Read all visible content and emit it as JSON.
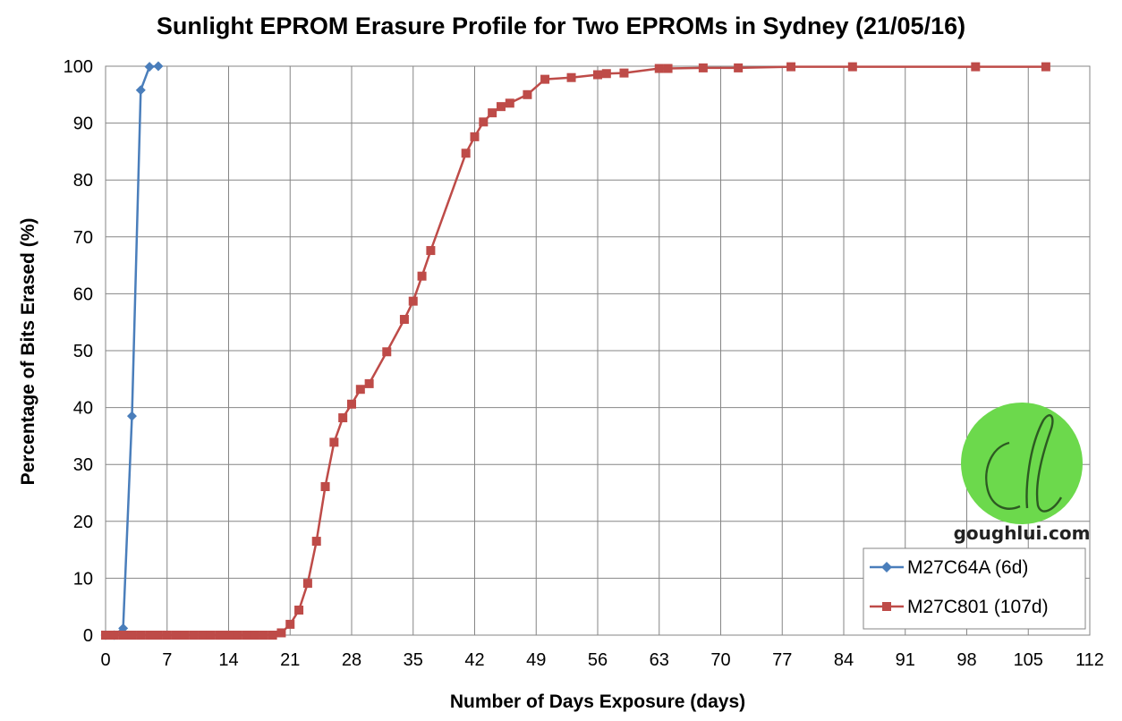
{
  "chart_data": {
    "type": "line",
    "title": "Sunlight EPROM Erasure Profile for Two EPROMs in Sydney (21/05/16)",
    "xlabel": "Number of Days Exposure (days)",
    "ylabel": "Percentage of Bits Erased (%)",
    "xlim": [
      0,
      112
    ],
    "ylim": [
      0,
      100
    ],
    "xticks": [
      0,
      7,
      14,
      21,
      28,
      35,
      42,
      49,
      56,
      63,
      70,
      77,
      84,
      91,
      98,
      105,
      112
    ],
    "yticks": [
      0,
      10,
      20,
      30,
      40,
      50,
      60,
      70,
      80,
      90,
      100
    ],
    "grid": true,
    "legend_position": "bottom-right",
    "series": [
      {
        "name": "M27C64A (6d)",
        "color": "#4a7ebb",
        "marker": "diamond",
        "x": [
          0,
          1,
          2,
          3,
          4,
          5,
          6
        ],
        "y": [
          0,
          0,
          1.2,
          38.5,
          95.8,
          99.9,
          100
        ]
      },
      {
        "name": "M27C801 (107d)",
        "color": "#be4b48",
        "marker": "square",
        "x": [
          0,
          1,
          2,
          3,
          4,
          5,
          6,
          7,
          8,
          9,
          10,
          11,
          12,
          13,
          14,
          15,
          16,
          17,
          18,
          19,
          20,
          21,
          22,
          23,
          24,
          25,
          26,
          27,
          28,
          29,
          30,
          32,
          34,
          35,
          36,
          37,
          41,
          42,
          43,
          44,
          45,
          46,
          48,
          50,
          53,
          56,
          57,
          59,
          63,
          64,
          68,
          72,
          78,
          85,
          99,
          107
        ],
        "y": [
          0,
          0,
          0,
          0,
          0,
          0,
          0,
          0,
          0,
          0,
          0,
          0,
          0,
          0,
          0,
          0,
          0,
          0,
          0,
          0,
          0.4,
          1.9,
          4.4,
          9.1,
          16.5,
          26.1,
          33.9,
          38.2,
          40.6,
          43.2,
          44.2,
          49.8,
          55.5,
          58.7,
          63.1,
          67.6,
          84.7,
          87.6,
          90.2,
          91.8,
          92.9,
          93.5,
          95.0,
          97.7,
          98.0,
          98.5,
          98.7,
          98.8,
          99.6,
          99.6,
          99.7,
          99.7,
          99.9,
          99.9,
          99.9,
          99.9
        ]
      }
    ]
  },
  "watermark": {
    "site": "goughlui.com",
    "monogram": "Cl",
    "color": "#6cd94c"
  }
}
